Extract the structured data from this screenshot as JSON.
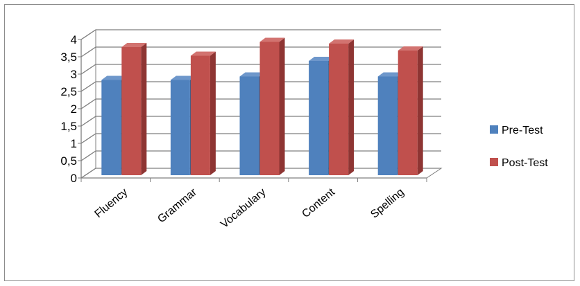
{
  "chart_data": {
    "type": "bar",
    "title": "",
    "xlabel": "",
    "ylabel": "",
    "categories": [
      "Fluency",
      "Grammar",
      "Vocabulary",
      "Content",
      "Spelling"
    ],
    "series": [
      {
        "name": "Pre-Test",
        "values": [
          2.75,
          2.75,
          2.85,
          3.3,
          2.85
        ],
        "color": "#4F81BD",
        "side": "#385D8A",
        "top": "#6E97CB"
      },
      {
        "name": "Post-Test",
        "values": [
          3.7,
          3.45,
          3.85,
          3.8,
          3.6
        ],
        "color": "#C0504D",
        "side": "#8E3533",
        "top": "#D27370"
      }
    ],
    "ylim": [
      0,
      4
    ],
    "yticks": [
      "0",
      "0,5",
      "1",
      "1,5",
      "2",
      "2,5",
      "3",
      "3,5",
      "4"
    ],
    "grid": true,
    "legend_position": "right",
    "three_d": true
  }
}
